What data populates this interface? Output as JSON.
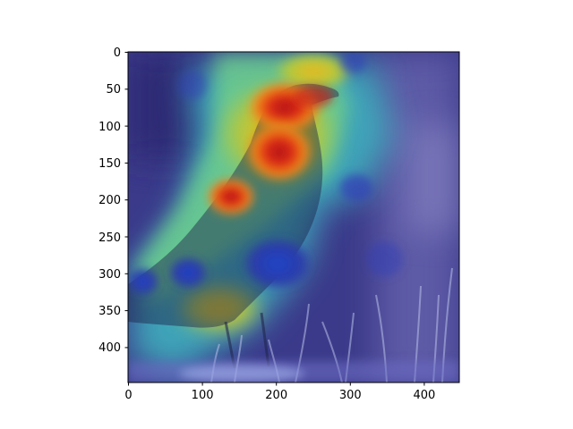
{
  "figure": {
    "content": "Grad-CAM style heatmap overlay on a photo of a bird (crow) in grass",
    "colormap": "jet",
    "background_color": "#ffffff"
  },
  "axes": {
    "x_ticks": [
      "0",
      "100",
      "200",
      "300",
      "400"
    ],
    "y_ticks": [
      "0",
      "50",
      "100",
      "150",
      "200",
      "250",
      "300",
      "350",
      "400"
    ],
    "x_range": [
      0,
      448
    ],
    "y_range": [
      0,
      448
    ],
    "y_inverted": true,
    "frame_color": "#000000"
  }
}
